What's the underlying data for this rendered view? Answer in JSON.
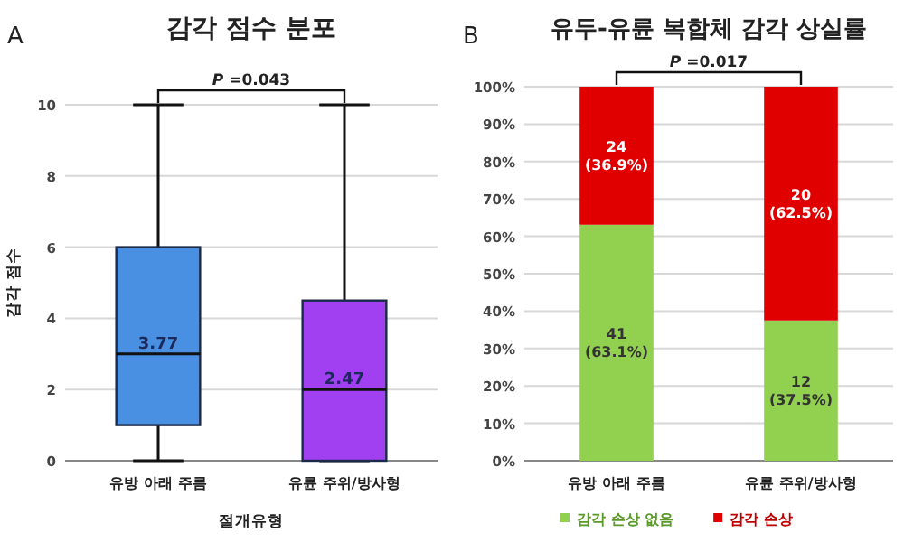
{
  "chart_data": [
    {
      "type": "box",
      "title": "감각 점수 분포",
      "xlabel": "절개유형",
      "ylabel": "감각 점수",
      "categories": [
        "유방 아래 주름",
        "유륜 주위/방사형"
      ],
      "series": [
        {
          "color": "#4a90e2",
          "boxes": [
            {
              "low": 0,
              "q1": 1,
              "median": 3,
              "q3": 6,
              "high": 10
            },
            null
          ]
        },
        {
          "color": "#a040f0",
          "boxes": [
            null,
            {
              "low": 0,
              "q1": 0,
              "median": 2,
              "q3": 4.5,
              "high": 10
            }
          ]
        }
      ],
      "ylim": [
        0,
        10
      ],
      "yticks": [
        0,
        2,
        4,
        6,
        8,
        10
      ],
      "grid": "y",
      "annotations": [
        "A",
        "*P* =0.043",
        "3.77",
        "2.47"
      ]
    },
    {
      "type": "bar",
      "stacked": true,
      "title": "유두-유륜 복합체 감각 상실률",
      "categories": [
        "유방 아래 주름",
        "유륜 주위/방사형"
      ],
      "series": [
        {
          "name": "감각 손상 없음",
          "color": "#92d050",
          "values": [
            63.1,
            37.5
          ],
          "value_labels": [
            "41 (63.1%)",
            "12 (37.5%)"
          ]
        },
        {
          "name": "감각 손상",
          "color": "#e00000",
          "values": [
            36.9,
            62.5
          ],
          "value_labels": [
            "24 (36.9%)",
            "20 (62.5%)"
          ]
        }
      ],
      "ylim": [
        0,
        100
      ],
      "yticks": [
        {
          "value": 0,
          "label": "0%"
        },
        {
          "value": 10,
          "label": "10%"
        },
        {
          "value": 20,
          "label": "20%"
        },
        {
          "value": 30,
          "label": "30%"
        },
        {
          "value": 40,
          "label": "40%"
        },
        {
          "value": 50,
          "label": "50%"
        },
        {
          "value": 60,
          "label": "60%"
        },
        {
          "value": 70,
          "label": "70%"
        },
        {
          "value": 80,
          "label": "80%"
        },
        {
          "value": 90,
          "label": "90%"
        },
        {
          "value": 100,
          "label": "100%"
        }
      ],
      "grid": "y",
      "legend": "bottom",
      "annotations": [
        "B",
        "*P* =0.017"
      ]
    }
  ]
}
